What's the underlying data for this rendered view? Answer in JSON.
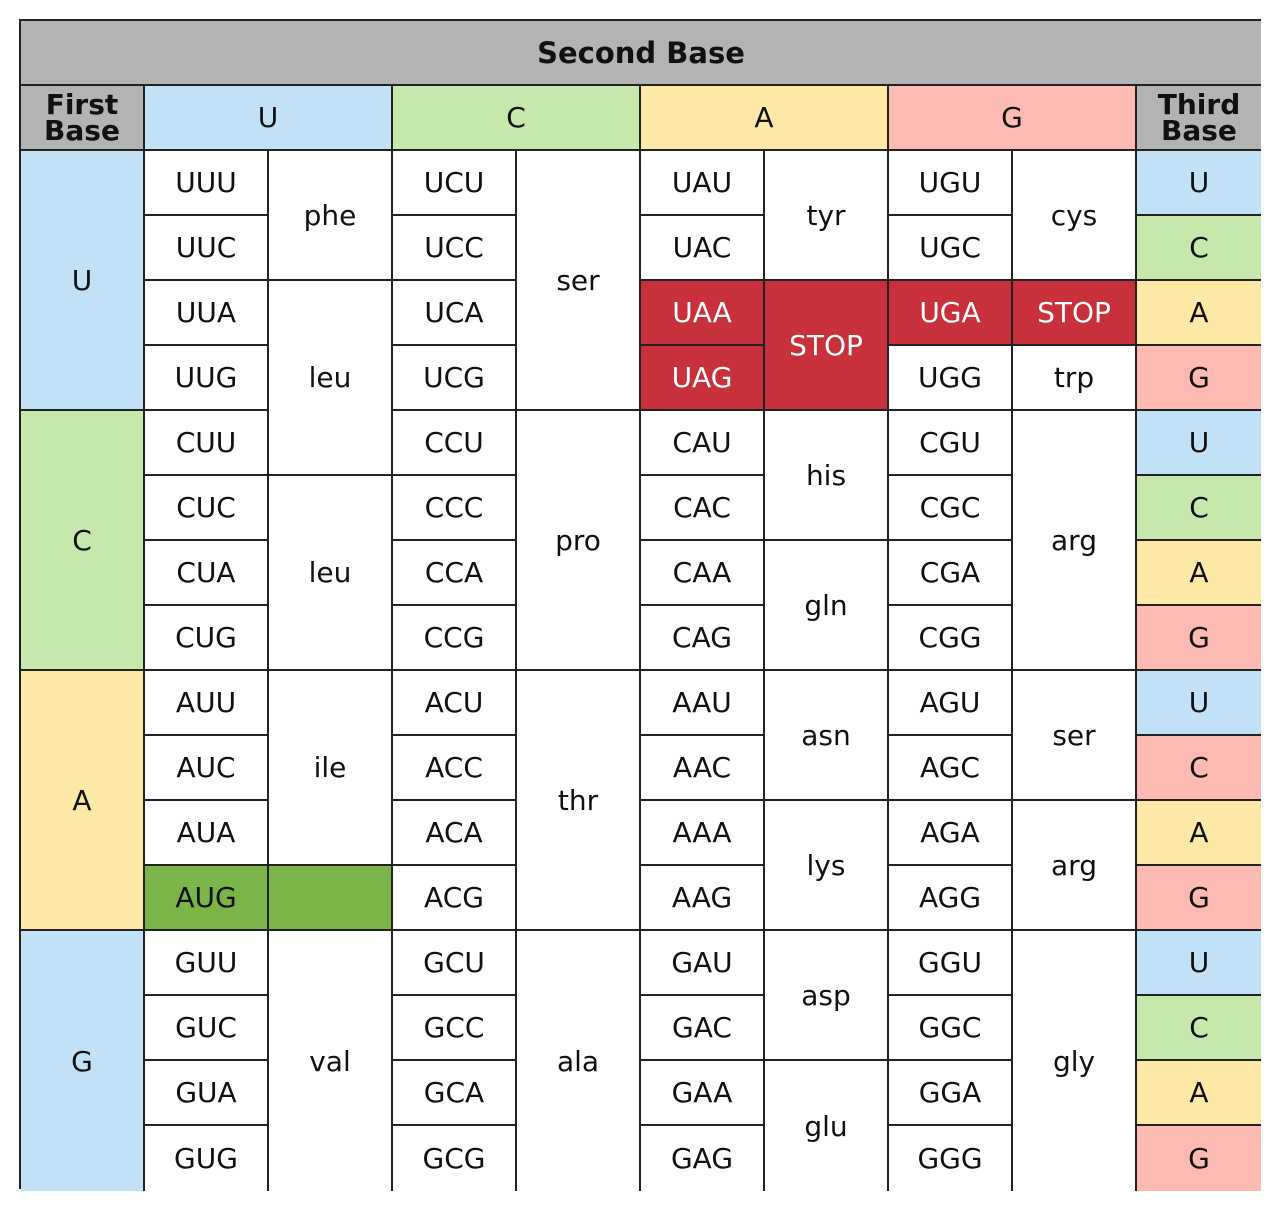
{
  "title": "Second Base",
  "first_base_header": "First\nBase",
  "third_base_header": "Third\nBase",
  "second_bases": [
    {
      "label": "U",
      "color": "#c1e2f6"
    },
    {
      "label": "C",
      "color": "#c7e8ad"
    },
    {
      "label": "A",
      "color": "#fde8a6"
    },
    {
      "label": "G",
      "color": "#fcbab2"
    }
  ],
  "first_bases": [
    {
      "label": "U",
      "color": "#c1e2f6"
    },
    {
      "label": "C",
      "color": "#c7e8ad"
    },
    {
      "label": "A",
      "color": "#fde8a6"
    },
    {
      "label": "G",
      "color": "#c1e2f6"
    }
  ],
  "third_bases": [
    {
      "label": "U",
      "color": "#c1e2f6"
    },
    {
      "label": "C",
      "color": "#c7e8ad"
    },
    {
      "label": "A",
      "color": "#fde8a6"
    },
    {
      "label": "G",
      "color": "#fcbab2"
    },
    {
      "label": "U",
      "color": "#c1e2f6"
    },
    {
      "label": "C",
      "color": "#c7e8ad"
    },
    {
      "label": "A",
      "color": "#fde8a6"
    },
    {
      "label": "G",
      "color": "#fcbab2"
    },
    {
      "label": "U",
      "color": "#c1e2f6"
    },
    {
      "label": "C",
      "color": "#fcbab2"
    },
    {
      "label": "A",
      "color": "#fde8a6"
    },
    {
      "label": "G",
      "color": "#fcbab2"
    },
    {
      "label": "U",
      "color": "#c1e2f6"
    },
    {
      "label": "C",
      "color": "#c7e8ad"
    },
    {
      "label": "A",
      "color": "#fde8a6"
    },
    {
      "label": "G",
      "color": "#fcbab2"
    }
  ],
  "colors": {
    "stop": "#c8303b",
    "start": "#7bb54a",
    "header_gray": "#b3b3b3"
  },
  "codon_columns": [
    {
      "codons": [
        {
          "codon": "UUU"
        },
        {
          "codon": "UUC"
        },
        {
          "codon": "UUA"
        },
        {
          "codon": "UUG"
        },
        {
          "codon": "CUU"
        },
        {
          "codon": "CUC"
        },
        {
          "codon": "CUA"
        },
        {
          "codon": "CUG"
        },
        {
          "codon": "AUU"
        },
        {
          "codon": "AUC"
        },
        {
          "codon": "AUA"
        },
        {
          "codon": "AUG",
          "highlight": "start"
        },
        {
          "codon": "GUU"
        },
        {
          "codon": "GUC"
        },
        {
          "codon": "GUA"
        },
        {
          "codon": "GUG"
        }
      ],
      "amino_acids": [
        {
          "name": "phe",
          "span": 2
        },
        {
          "name": "leu",
          "span": 3
        },
        {
          "name": "leu",
          "span": 3
        },
        {
          "name": "ile",
          "span": 3
        },
        {
          "name": "",
          "span": 1,
          "highlight": "start"
        },
        {
          "name": "val",
          "span": 4
        }
      ]
    },
    {
      "codons": [
        {
          "codon": "UCU"
        },
        {
          "codon": "UCC"
        },
        {
          "codon": "UCA"
        },
        {
          "codon": "UCG"
        },
        {
          "codon": "CCU"
        },
        {
          "codon": "CCC"
        },
        {
          "codon": "CCA"
        },
        {
          "codon": "CCG"
        },
        {
          "codon": "ACU"
        },
        {
          "codon": "ACC"
        },
        {
          "codon": "ACA"
        },
        {
          "codon": "ACG"
        },
        {
          "codon": "GCU"
        },
        {
          "codon": "GCC"
        },
        {
          "codon": "GCA"
        },
        {
          "codon": "GCG"
        }
      ],
      "amino_acids": [
        {
          "name": "ser",
          "span": 4
        },
        {
          "name": "pro",
          "span": 4
        },
        {
          "name": "thr",
          "span": 4
        },
        {
          "name": "ala",
          "span": 4
        }
      ]
    },
    {
      "codons": [
        {
          "codon": "UAU"
        },
        {
          "codon": "UAC"
        },
        {
          "codon": "UAA",
          "highlight": "stop"
        },
        {
          "codon": "UAG",
          "highlight": "stop"
        },
        {
          "codon": "CAU"
        },
        {
          "codon": "CAC"
        },
        {
          "codon": "CAA"
        },
        {
          "codon": "CAG"
        },
        {
          "codon": "AAU"
        },
        {
          "codon": "AAC"
        },
        {
          "codon": "AAA"
        },
        {
          "codon": "AAG"
        },
        {
          "codon": "GAU"
        },
        {
          "codon": "GAC"
        },
        {
          "codon": "GAA"
        },
        {
          "codon": "GAG"
        }
      ],
      "amino_acids": [
        {
          "name": "tyr",
          "span": 2
        },
        {
          "name": "STOP",
          "span": 2,
          "highlight": "stop"
        },
        {
          "name": "his",
          "span": 2
        },
        {
          "name": "gln",
          "span": 2
        },
        {
          "name": "asn",
          "span": 2
        },
        {
          "name": "lys",
          "span": 2
        },
        {
          "name": "asp",
          "span": 2
        },
        {
          "name": "glu",
          "span": 2
        }
      ]
    },
    {
      "codons": [
        {
          "codon": "UGU"
        },
        {
          "codon": "UGC"
        },
        {
          "codon": "UGA",
          "highlight": "stop"
        },
        {
          "codon": "UGG"
        },
        {
          "codon": "CGU"
        },
        {
          "codon": "CGC"
        },
        {
          "codon": "CGA"
        },
        {
          "codon": "CGG"
        },
        {
          "codon": "AGU"
        },
        {
          "codon": "AGC"
        },
        {
          "codon": "AGA"
        },
        {
          "codon": "AGG"
        },
        {
          "codon": "GGU"
        },
        {
          "codon": "GGC"
        },
        {
          "codon": "GGA"
        },
        {
          "codon": "GGG"
        }
      ],
      "amino_acids": [
        {
          "name": "cys",
          "span": 2
        },
        {
          "name": "STOP",
          "span": 1,
          "highlight": "stop"
        },
        {
          "name": "trp",
          "span": 1
        },
        {
          "name": "arg",
          "span": 4
        },
        {
          "name": "ser",
          "span": 2
        },
        {
          "name": "arg",
          "span": 2
        },
        {
          "name": "gly",
          "span": 4
        }
      ]
    }
  ]
}
